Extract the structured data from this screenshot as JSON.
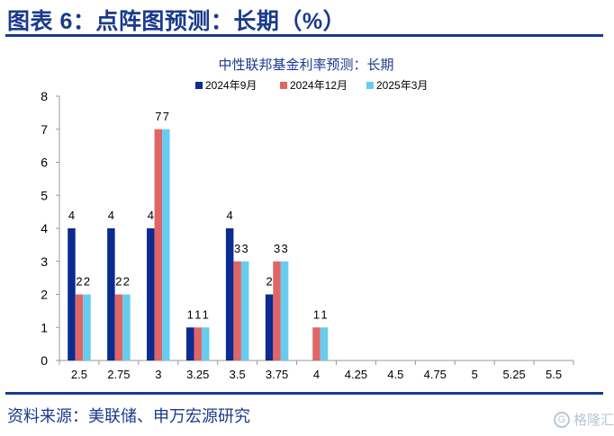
{
  "figure": {
    "title": "图表 6：点阵图预测：长期（%）",
    "source": "资料来源：美联储、申万宏源研究",
    "watermark": "格隆汇"
  },
  "colors": {
    "title": "#1a3a8c",
    "series": [
      "#0a2b8f",
      "#e06666",
      "#66ccf0"
    ],
    "axis": "#999999",
    "label": "#000000"
  },
  "chart_data": {
    "type": "bar",
    "title": "中性联邦基金利率预测：长期",
    "categories": [
      "2.5",
      "2.75",
      "3",
      "3.25",
      "3.5",
      "3.75",
      "4",
      "4.25",
      "4.5",
      "4.75",
      "5",
      "5.25",
      "5.5"
    ],
    "series": [
      {
        "name": "2024年9月",
        "values": [
          4,
          4,
          4,
          1,
          4,
          2,
          0,
          0,
          0,
          0,
          0,
          0,
          0
        ],
        "labels": [
          "4",
          "4",
          "4",
          "1",
          "4",
          "2",
          "",
          "",
          "",
          "",
          "",
          "",
          ""
        ]
      },
      {
        "name": "2024年12月",
        "values": [
          2,
          2,
          7,
          1,
          3,
          3,
          1,
          0,
          0,
          0,
          0,
          0,
          0
        ],
        "labels": [
          "2",
          "2",
          "7",
          "1",
          "3",
          "3",
          "1",
          "",
          "",
          "",
          "",
          "",
          ""
        ]
      },
      {
        "name": "2025年3月",
        "values": [
          2,
          2,
          7,
          1,
          3,
          3,
          1,
          0,
          0,
          0,
          0,
          0,
          0
        ],
        "labels": [
          "2",
          "2",
          "7",
          "1",
          "3",
          "3",
          "1",
          "",
          "",
          "",
          "",
          "",
          ""
        ]
      }
    ],
    "ylim": [
      0,
      8
    ],
    "yticks": [
      "0",
      "1",
      "2",
      "3",
      "4",
      "5",
      "6",
      "7",
      "8"
    ],
    "legend_position": "top-center",
    "grid": false
  }
}
